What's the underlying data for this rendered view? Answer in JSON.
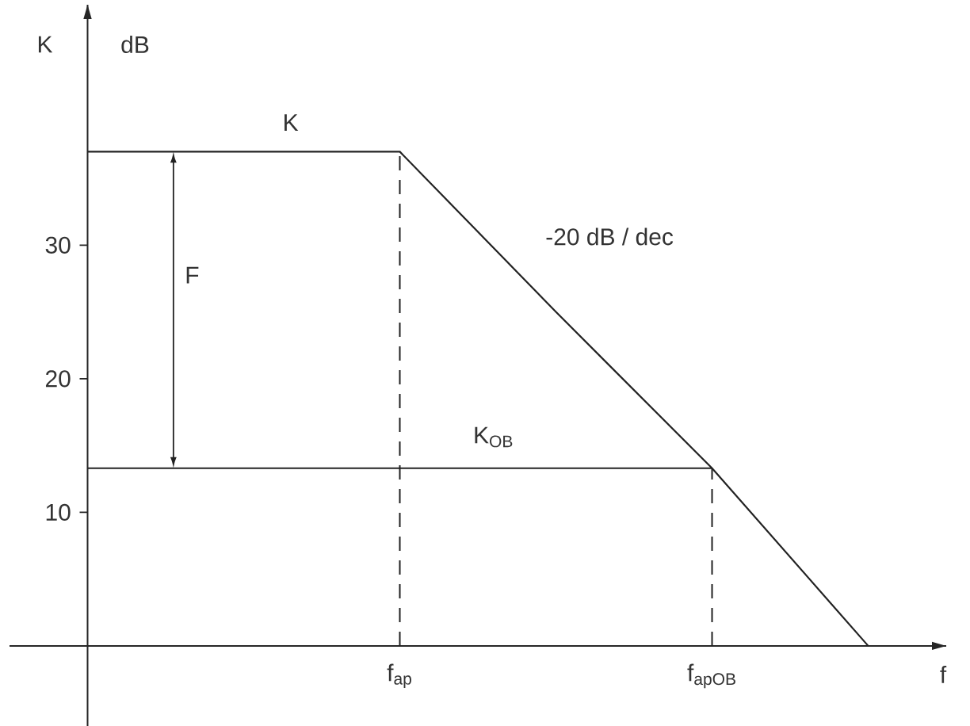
{
  "chart_data": {
    "type": "line",
    "xlabel": "f",
    "ylabel": "K",
    "categories": [
      null,
      null,
      "f$_{ap}$",
      null,
      "f$_{apOB}$",
      null
    ],
    "ylim": [
      -6,
      48
    ],
    "yticks": [
      10,
      20,
      30
    ],
    "series": [
      {
        "name": "K",
        "color": "#222222",
        "values": [
          37,
          37,
          37,
          25,
          13.3,
          0
        ]
      },
      {
        "name": "K$_{OB}$",
        "color": "#222222",
        "values": [
          13.3,
          13.3,
          13.3,
          13.3,
          13.3,
          null
        ]
      }
    ],
    "ref_lines": [
      {
        "axis": "x",
        "value": "f$_{ap}$",
        "color": "#222222",
        "line_style": "dashed"
      },
      {
        "axis": "x",
        "value": "f$_{apOB}$",
        "color": "#222222",
        "line_style": "dashed"
      }
    ],
    "annotations": [
      "dB",
      "-20 dB / dec",
      "F"
    ]
  }
}
